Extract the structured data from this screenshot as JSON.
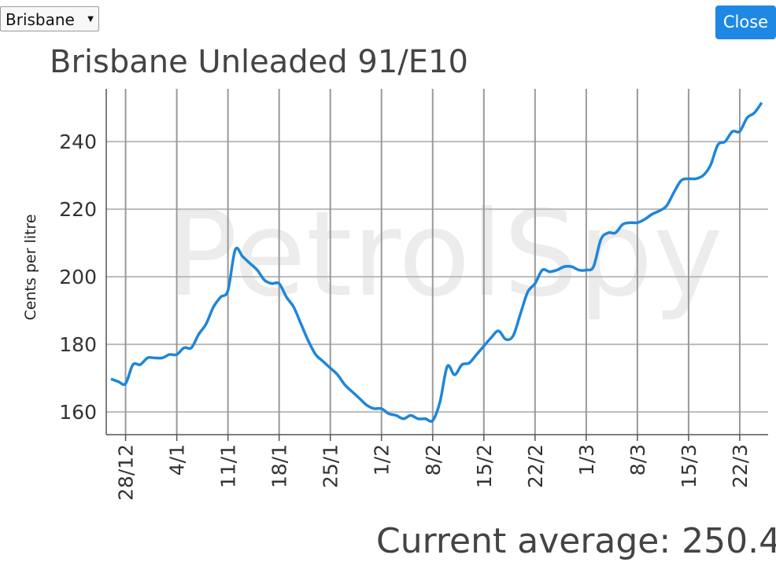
{
  "dropdown": {
    "value": "Brisbane"
  },
  "close_button": {
    "label": "Close"
  },
  "chart_data": {
    "type": "line",
    "title": "Brisbane Unleaded 91/E10",
    "watermark": "PetrolSpy",
    "y_label": "Cents per litre",
    "categories": [
      null,
      null,
      "28/12",
      null,
      null,
      null,
      null,
      null,
      null,
      "4/1",
      null,
      null,
      null,
      null,
      null,
      null,
      "11/1",
      null,
      null,
      null,
      null,
      null,
      null,
      "18/1",
      null,
      null,
      null,
      null,
      null,
      null,
      "25/1",
      null,
      null,
      null,
      null,
      null,
      null,
      "1/2",
      null,
      null,
      null,
      null,
      null,
      null,
      "8/2",
      null,
      null,
      null,
      null,
      null,
      null,
      "15/2",
      null,
      null,
      null,
      null,
      null,
      null,
      "22/2",
      null,
      null,
      null,
      null,
      null,
      null,
      "1/3",
      null,
      null,
      null,
      null,
      null,
      null,
      "8/3",
      null,
      null,
      null,
      null,
      null,
      null,
      "15/3",
      null,
      null,
      null,
      null,
      null,
      null,
      "22/3",
      null,
      null,
      null
    ],
    "series": [
      {
        "name": "Brisbane Unleaded 91/E10",
        "color": "#1f86d9",
        "values": [
          169.8,
          169,
          168.4,
          174,
          174,
          176,
          176,
          176,
          177,
          177,
          179,
          179,
          183,
          186,
          191,
          194,
          196,
          208,
          206,
          204,
          202,
          199,
          198,
          198,
          194,
          191,
          186,
          181,
          177,
          175,
          173,
          171,
          168,
          166,
          164,
          162,
          161,
          161,
          159.5,
          159,
          158,
          159,
          158,
          158,
          157.5,
          163,
          173.5,
          171,
          174,
          174.5,
          177,
          179.5,
          182,
          184,
          181.5,
          182.5,
          189,
          195.5,
          198,
          202,
          201.5,
          202,
          203,
          203,
          202,
          202,
          203,
          211,
          213,
          213,
          215.5,
          216,
          216,
          217,
          218.5,
          219.5,
          221,
          225,
          228.5,
          229,
          229,
          230,
          233,
          239,
          240,
          243,
          243,
          247,
          248.5,
          251.5
        ]
      }
    ],
    "ylim": [
      153.3,
      255.6
    ],
    "yticks": [
      160,
      180,
      200,
      220,
      240
    ],
    "grid": true
  },
  "current_average": {
    "label": "Current average: 250.4"
  }
}
